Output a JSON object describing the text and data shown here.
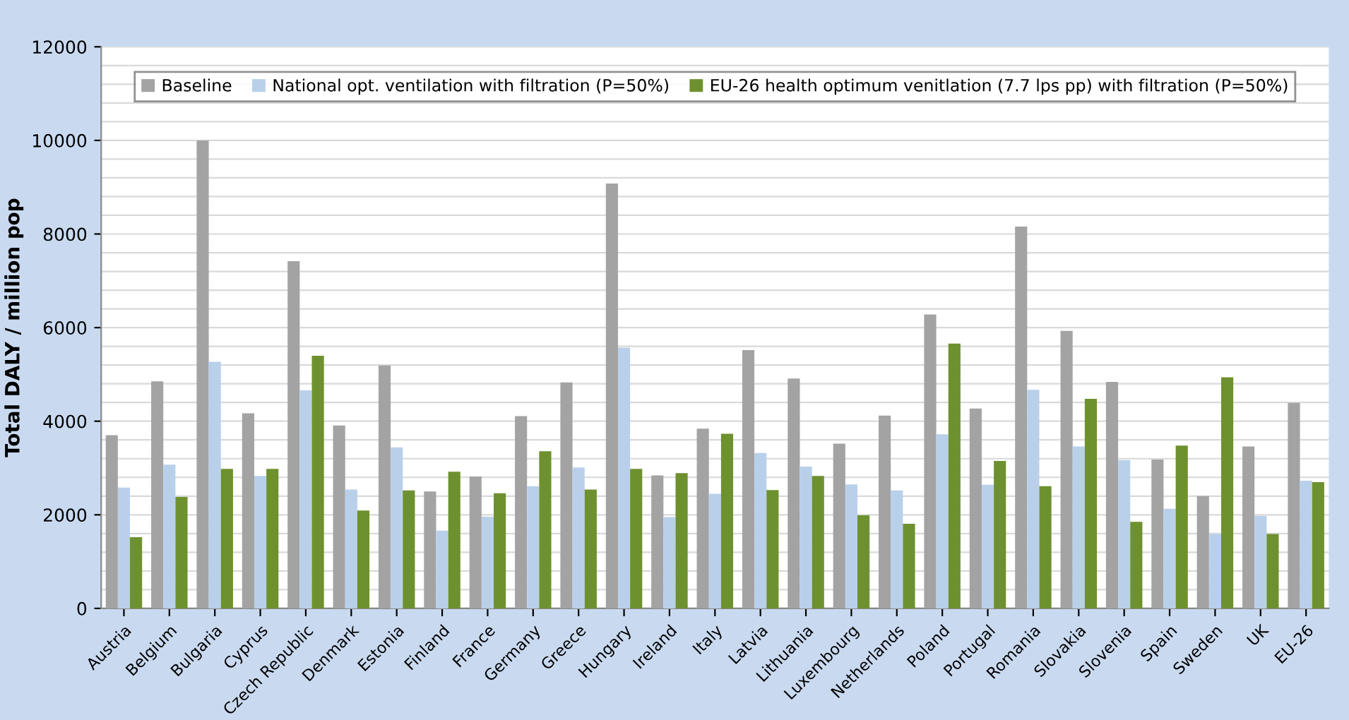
{
  "chart_data": {
    "type": "bar",
    "ylabel": "Total DALY / million pop",
    "categories": [
      "Austria",
      "Belgium",
      "Bulgaria",
      "Cyprus",
      "Czech Republic",
      "Denmark",
      "Estonia",
      "Finland",
      "France",
      "Germany",
      "Greece",
      "Hungary",
      "Ireland",
      "Italy",
      "Latvia",
      "Lithuania",
      "Luxembourg",
      "Netherlands",
      "Poland",
      "Portugal",
      "Romania",
      "Slovakia",
      "Slovenia",
      "Spain",
      "Sweden",
      "UK",
      "EU-26"
    ],
    "series": [
      {
        "name": "Baseline",
        "color": "#a3a3a3",
        "values": [
          3700,
          4850,
          10000,
          4170,
          7420,
          3910,
          5190,
          2500,
          2820,
          4110,
          4830,
          9080,
          2840,
          3840,
          5520,
          4910,
          3520,
          4120,
          6280,
          4270,
          8160,
          5930,
          4840,
          3180,
          2400,
          3460,
          4390
        ]
      },
      {
        "name": "National opt. ventilation with filtration (P=50%)",
        "color": "#b9d0ea",
        "values": [
          2580,
          3070,
          5270,
          2830,
          4660,
          2540,
          3440,
          1660,
          1960,
          2610,
          3010,
          5570,
          1950,
          2450,
          3320,
          3030,
          2650,
          2520,
          3720,
          2640,
          4670,
          3460,
          3170,
          2130,
          1590,
          1980,
          2730
        ]
      },
      {
        "name": "EU-26 health optimum venitlation (7.7 lps pp) with filtration (P=50%)",
        "color": "#6e9130",
        "values": [
          1520,
          2380,
          2980,
          2980,
          5400,
          2090,
          2520,
          2920,
          2460,
          3360,
          2540,
          2980,
          2890,
          3730,
          2530,
          2830,
          1990,
          1810,
          5660,
          3150,
          2610,
          4480,
          1850,
          3480,
          4940,
          1590,
          2700
        ]
      }
    ],
    "ylim": [
      0,
      12000
    ],
    "yticks": [
      0,
      2000,
      4000,
      6000,
      8000,
      10000,
      12000
    ],
    "grid": "y",
    "legend": "top"
  }
}
